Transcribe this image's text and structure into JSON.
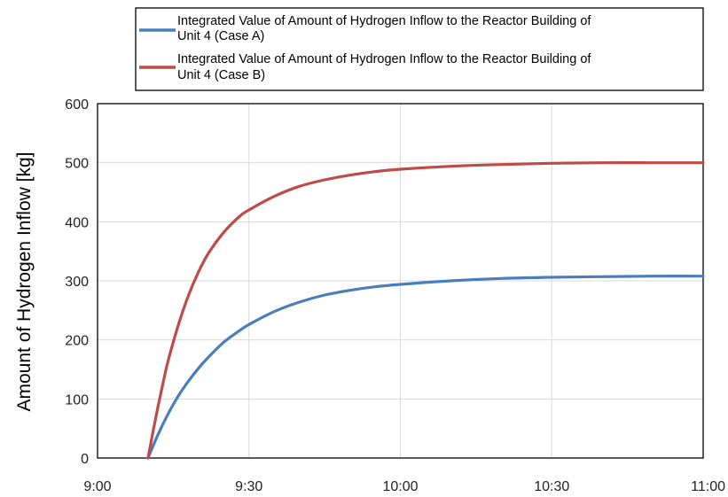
{
  "chart_data": {
    "type": "line",
    "title": "",
    "xlabel": "",
    "ylabel": "Amount of Hydrogen Inflow [kg]",
    "x_tick_labels": [
      "9:00",
      "9:30",
      "10:00",
      "10:30",
      "11:00"
    ],
    "y_tick_labels": [
      "0",
      "100",
      "200",
      "300",
      "400",
      "500",
      "600"
    ],
    "xlim": [
      0,
      120
    ],
    "ylim": [
      0,
      600
    ],
    "x_unit": "minutes after 9:00",
    "grid": true,
    "legend_position": "top",
    "series": [
      {
        "name_lines": [
          "Integrated Value of Amount of Hydrogen Inflow to the Reactor Building of",
          "Unit 4 (Case A)"
        ],
        "color": "#4a7ebb",
        "x": [
          10,
          12,
          14,
          16,
          18,
          20,
          22,
          25,
          28,
          30,
          35,
          40,
          45,
          50,
          55,
          60,
          70,
          80,
          90,
          100,
          110,
          120
        ],
        "y": [
          0,
          40,
          75,
          105,
          130,
          152,
          171,
          196,
          215,
          226,
          248,
          264,
          276,
          284,
          290,
          294,
          300,
          304,
          306,
          307,
          308,
          308
        ]
      },
      {
        "name_lines": [
          "Integrated Value of Amount of Hydrogen Inflow to the Reactor Building of",
          "Unit 4 (Case B)"
        ],
        "color": "#be4b48",
        "x": [
          10,
          11,
          12,
          13,
          14,
          16,
          18,
          20,
          22,
          25,
          28,
          30,
          35,
          40,
          45,
          50,
          55,
          60,
          70,
          80,
          90,
          100,
          110,
          120
        ],
        "y": [
          0,
          45,
          88,
          128,
          165,
          225,
          275,
          315,
          347,
          382,
          408,
          420,
          443,
          460,
          471,
          479,
          485,
          489,
          494,
          497,
          499,
          500,
          500,
          500
        ]
      }
    ]
  }
}
